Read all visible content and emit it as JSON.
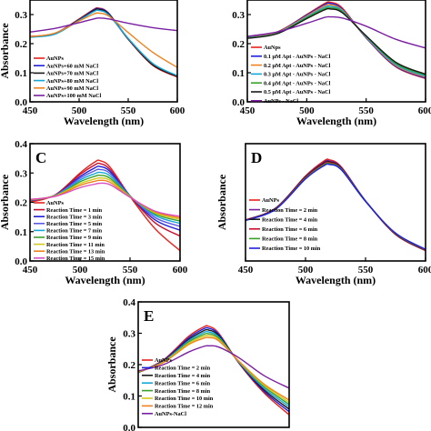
{
  "chart_data": [
    {
      "type": "line",
      "panel": "A",
      "panel_label": "",
      "xlabel": "Wavelength (nm)",
      "ylabel": "Absorbance",
      "xlim": [
        450,
        600
      ],
      "ylim": [
        0.0,
        0.35
      ],
      "x_ticks": [
        "450",
        "500",
        "550",
        "600"
      ],
      "y_ticks": [
        "0.0",
        "0.1",
        "0.2",
        "0.3"
      ],
      "x": [
        450,
        475,
        500,
        515,
        520,
        530,
        550,
        575,
        600
      ],
      "legend_position": "bottom-left",
      "series": [
        {
          "name": "AuNPs",
          "color": "#e8231e",
          "values": [
            0.225,
            0.235,
            0.285,
            0.318,
            0.322,
            0.305,
            0.215,
            0.125,
            0.085
          ]
        },
        {
          "name": "AuNPs+60 mM NaCl",
          "color": "#1f1fdc",
          "values": [
            0.224,
            0.234,
            0.283,
            0.316,
            0.32,
            0.304,
            0.217,
            0.128,
            0.088
          ]
        },
        {
          "name": "AuNPs+70 mM NaCl",
          "color": "#1a1a1a",
          "values": [
            0.223,
            0.233,
            0.282,
            0.314,
            0.318,
            0.302,
            0.216,
            0.127,
            0.087
          ]
        },
        {
          "name": "AuNPs+80 mM NaCl",
          "color": "#16a7d8",
          "values": [
            0.222,
            0.232,
            0.28,
            0.31,
            0.314,
            0.299,
            0.218,
            0.132,
            0.09
          ]
        },
        {
          "name": "AuNPs+90 mM NaCl",
          "color": "#f0821e",
          "values": [
            0.224,
            0.236,
            0.278,
            0.302,
            0.305,
            0.295,
            0.238,
            0.17,
            0.118
          ]
        },
        {
          "name": "AuNPs+100 mM NaCl",
          "color": "#7a1fa2",
          "values": [
            0.24,
            0.252,
            0.272,
            0.285,
            0.288,
            0.285,
            0.27,
            0.255,
            0.245
          ]
        }
      ]
    },
    {
      "type": "line",
      "panel": "B",
      "panel_label": "",
      "xlabel": "Wavelength (nm)",
      "ylabel": "",
      "xlim": [
        450,
        600
      ],
      "ylim": [
        0.0,
        0.35
      ],
      "x_ticks": [
        "450",
        "500",
        "550",
        "600"
      ],
      "y_ticks": [
        "0.0",
        "0.1",
        "0.2",
        "0.3"
      ],
      "x": [
        450,
        475,
        500,
        515,
        520,
        530,
        550,
        575,
        600
      ],
      "legend_position": "bottom-left",
      "series": [
        {
          "name": "AuNps",
          "color": "#e8231e",
          "values": [
            0.222,
            0.24,
            0.3,
            0.338,
            0.342,
            0.322,
            0.22,
            0.12,
            0.08
          ]
        },
        {
          "name": "0.1 μM Apt - AuNPs - NaCl",
          "color": "#1f1fdc",
          "values": [
            0.221,
            0.239,
            0.298,
            0.334,
            0.338,
            0.318,
            0.22,
            0.122,
            0.082
          ]
        },
        {
          "name": "0.2 μM Apt - AuNPs - NaCl",
          "color": "#f0821e",
          "values": [
            0.22,
            0.238,
            0.295,
            0.33,
            0.333,
            0.315,
            0.222,
            0.125,
            0.085
          ]
        },
        {
          "name": "0.3 μM Apt - AuNPs - NaCl",
          "color": "#16a7d8",
          "values": [
            0.22,
            0.236,
            0.292,
            0.325,
            0.328,
            0.312,
            0.224,
            0.128,
            0.088
          ]
        },
        {
          "name": "0.4 μM Apt - AuNPs - NaCl",
          "color": "#3aa02a",
          "values": [
            0.219,
            0.235,
            0.289,
            0.32,
            0.323,
            0.309,
            0.226,
            0.132,
            0.092
          ]
        },
        {
          "name": "0.5 μM Apt - AuNPs - NaCl",
          "color": "#1a1a1a",
          "values": [
            0.218,
            0.234,
            0.286,
            0.316,
            0.319,
            0.306,
            0.227,
            0.136,
            0.095
          ]
        },
        {
          "name": "AuNPs - NaCl",
          "color": "#7a1fa2",
          "values": [
            0.225,
            0.24,
            0.27,
            0.29,
            0.292,
            0.288,
            0.26,
            0.215,
            0.185
          ]
        }
      ]
    },
    {
      "type": "line",
      "panel": "C",
      "panel_label": "C",
      "xlabel": "Wavelength (nm)",
      "ylabel": "Absorbance",
      "xlim": [
        450,
        600
      ],
      "ylim": [
        0.0,
        0.4
      ],
      "x_ticks": [
        "450",
        "500",
        "550",
        "600"
      ],
      "y_ticks": [
        "0.0",
        "0.1",
        "0.2",
        "0.3",
        "0.4"
      ],
      "x": [
        450,
        475,
        500,
        515,
        520,
        530,
        550,
        575,
        600
      ],
      "legend_position": "bottom-left",
      "series": [
        {
          "name": "AuNPs",
          "color": "#e8231e",
          "values": [
            0.2,
            0.225,
            0.3,
            0.338,
            0.342,
            0.32,
            0.22,
            0.11,
            0.035
          ]
        },
        {
          "name": "Reaction Time = 1 min",
          "color": "#c8102e",
          "values": [
            0.205,
            0.225,
            0.295,
            0.328,
            0.332,
            0.312,
            0.222,
            0.13,
            0.085
          ]
        },
        {
          "name": "Reaction Time = 3 min",
          "color": "#1f1fdc",
          "values": [
            0.206,
            0.224,
            0.288,
            0.318,
            0.322,
            0.305,
            0.222,
            0.14,
            0.105
          ]
        },
        {
          "name": "Reaction Time = 5 min",
          "color": "#5a5ae6",
          "values": [
            0.207,
            0.224,
            0.282,
            0.308,
            0.312,
            0.298,
            0.222,
            0.148,
            0.118
          ]
        },
        {
          "name": "Reaction Time = 7 min",
          "color": "#16a7d8",
          "values": [
            0.208,
            0.223,
            0.276,
            0.298,
            0.302,
            0.29,
            0.221,
            0.155,
            0.128
          ]
        },
        {
          "name": "Reaction Time = 9 min",
          "color": "#3aa02a",
          "values": [
            0.208,
            0.222,
            0.27,
            0.289,
            0.292,
            0.282,
            0.22,
            0.16,
            0.136
          ]
        },
        {
          "name": "Reaction Time = 11 min",
          "color": "#d4c81a",
          "values": [
            0.209,
            0.222,
            0.264,
            0.28,
            0.283,
            0.275,
            0.219,
            0.164,
            0.142
          ]
        },
        {
          "name": "Reaction Time = 13 min",
          "color": "#f0821e",
          "values": [
            0.209,
            0.221,
            0.258,
            0.272,
            0.275,
            0.268,
            0.218,
            0.167,
            0.147
          ]
        },
        {
          "name": "Reaction Time = 15 min",
          "color": "#d94ec0",
          "values": [
            0.21,
            0.22,
            0.25,
            0.262,
            0.265,
            0.26,
            0.217,
            0.17,
            0.152
          ]
        }
      ]
    },
    {
      "type": "line",
      "panel": "D",
      "panel_label": "D",
      "xlabel": "Wavelength (nm)",
      "ylabel": "Absorbance",
      "xlim": [
        450,
        600
      ],
      "ylim": [
        0.0,
        0.4
      ],
      "x_ticks": [
        "450",
        "500",
        "550",
        "600"
      ],
      "y_ticks": [],
      "x": [
        450,
        475,
        500,
        515,
        520,
        530,
        550,
        575,
        600
      ],
      "legend_position": "bottom-left",
      "series": [
        {
          "name": "AuNPs",
          "color": "#e8231e",
          "values": [
            0.14,
            0.18,
            0.29,
            0.34,
            0.345,
            0.32,
            0.205,
            0.09,
            0.035
          ]
        },
        {
          "name": "Reaction Time = 2 min",
          "color": "#7a1fa2",
          "values": [
            0.14,
            0.18,
            0.288,
            0.336,
            0.341,
            0.318,
            0.205,
            0.091,
            0.036
          ]
        },
        {
          "name": "Reaction Time = 4 min",
          "color": "#1a1a1a",
          "values": [
            0.139,
            0.179,
            0.286,
            0.333,
            0.338,
            0.316,
            0.205,
            0.092,
            0.037
          ]
        },
        {
          "name": "Reaction Time = 6 min",
          "color": "#c8102e",
          "values": [
            0.139,
            0.178,
            0.284,
            0.33,
            0.335,
            0.314,
            0.204,
            0.093,
            0.038
          ]
        },
        {
          "name": "Reaction Time = 8 min",
          "color": "#3aa02a",
          "values": [
            0.138,
            0.177,
            0.282,
            0.327,
            0.332,
            0.312,
            0.204,
            0.094,
            0.039
          ]
        },
        {
          "name": "Reaction Time = 10 min",
          "color": "#1f1fdc",
          "values": [
            0.138,
            0.176,
            0.28,
            0.324,
            0.329,
            0.31,
            0.203,
            0.095,
            0.04
          ]
        }
      ]
    },
    {
      "type": "line",
      "panel": "E",
      "panel_label": "E",
      "xlabel": "",
      "ylabel": "Absorbance",
      "xlim": [
        450,
        600
      ],
      "ylim": [
        0.0,
        0.4
      ],
      "x_ticks": [],
      "y_ticks": [
        "0.0",
        "0.1",
        "0.2",
        "0.3",
        "0.4"
      ],
      "x": [
        450,
        475,
        500,
        515,
        520,
        530,
        550,
        575,
        600
      ],
      "legend_position": "bottom-left",
      "series": [
        {
          "name": "AuNPs",
          "color": "#e8231e",
          "values": [
            0.175,
            0.215,
            0.29,
            0.32,
            0.322,
            0.3,
            0.205,
            0.11,
            0.04
          ]
        },
        {
          "name": "Reaction Time = 2 min",
          "color": "#1f1fdc",
          "values": [
            0.175,
            0.213,
            0.285,
            0.314,
            0.316,
            0.296,
            0.206,
            0.115,
            0.05
          ]
        },
        {
          "name": "Reaction Time = 4 min",
          "color": "#1a1a1a",
          "values": [
            0.175,
            0.211,
            0.28,
            0.308,
            0.31,
            0.292,
            0.207,
            0.12,
            0.058
          ]
        },
        {
          "name": "Reaction Time = 6 min",
          "color": "#16a7d8",
          "values": [
            0.176,
            0.21,
            0.276,
            0.302,
            0.304,
            0.288,
            0.208,
            0.125,
            0.066
          ]
        },
        {
          "name": "Reaction Time = 8 min",
          "color": "#3aa02a",
          "values": [
            0.176,
            0.209,
            0.272,
            0.296,
            0.298,
            0.284,
            0.209,
            0.13,
            0.073
          ]
        },
        {
          "name": "Reaction Time = 10 min",
          "color": "#d4c81a",
          "values": [
            0.177,
            0.208,
            0.268,
            0.29,
            0.292,
            0.28,
            0.21,
            0.134,
            0.08
          ]
        },
        {
          "name": "Reaction Time = 12 min",
          "color": "#f0821e",
          "values": [
            0.177,
            0.207,
            0.264,
            0.284,
            0.286,
            0.276,
            0.211,
            0.138,
            0.087
          ]
        },
        {
          "name": "AuNPs-NaCl",
          "color": "#7a1fa2",
          "values": [
            0.18,
            0.2,
            0.24,
            0.258,
            0.26,
            0.256,
            0.222,
            0.165,
            0.125
          ]
        }
      ]
    }
  ]
}
